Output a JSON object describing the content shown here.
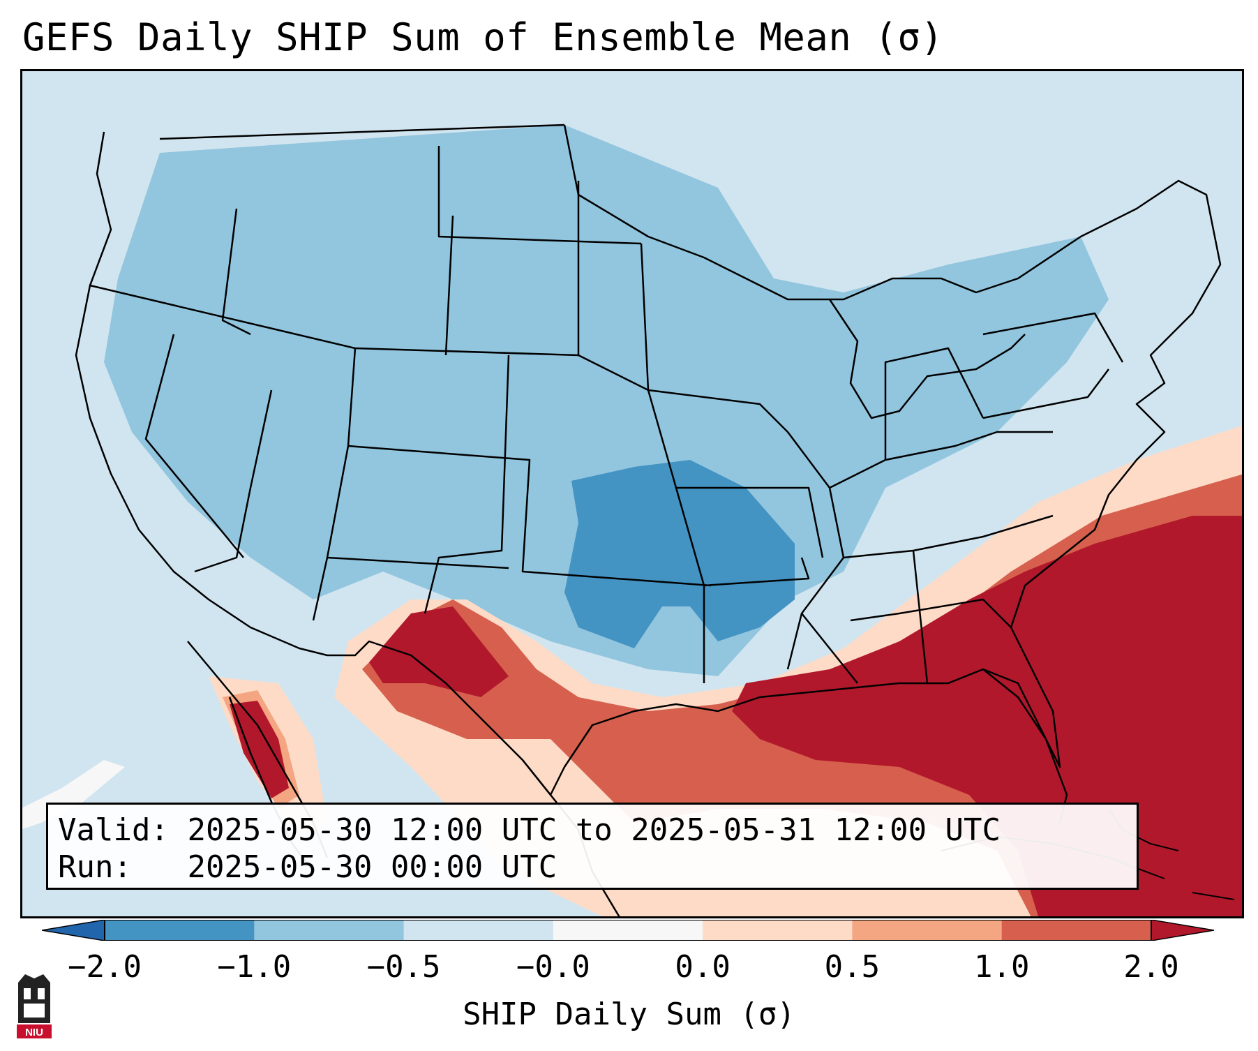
{
  "title": "GEFS Daily SHIP Sum of Ensemble Mean (σ)",
  "info": {
    "valid_label": "Valid:",
    "valid_value": "2025-05-30 12:00 UTC to 2025-05-31 12:00 UTC",
    "run_label": "Run:",
    "run_value": "2025-05-30 00:00 UTC"
  },
  "colorbar": {
    "label": "SHIP Daily Sum (σ)",
    "ticks": [
      "−2.0",
      "−1.0",
      "−0.5",
      "−0.0",
      "0.0",
      "0.5",
      "1.0",
      "2.0"
    ],
    "colors": [
      "#4393c3",
      "#92c5de",
      "#d1e5f0",
      "#f7f7f7",
      "#fddbc7",
      "#f4a582",
      "#d6604d"
    ],
    "extend_low_color": "#2166ac",
    "extend_high_color": "#b2182b"
  },
  "map": {
    "region": "Contiguous United States",
    "background_color": "#d1e5f0",
    "outline_color": "#000000"
  },
  "logo": {
    "text": "NIU"
  }
}
